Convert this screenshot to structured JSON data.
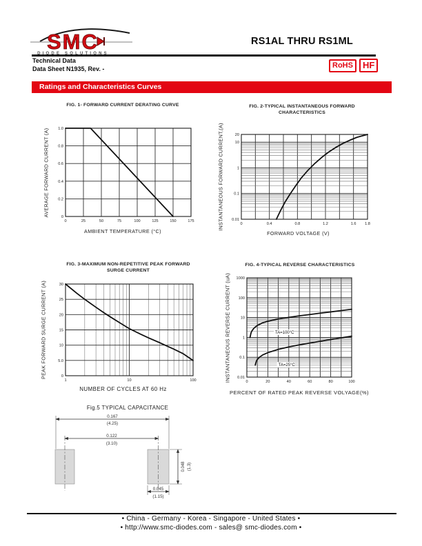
{
  "colors": {
    "accent": "#e30613",
    "pad_fill": "#d9d9d9",
    "curve": "#111111"
  },
  "header": {
    "logo_text": "SMC",
    "logo_subtext": "DIODE SOLUTIONS",
    "title": "RS1AL THRU RS1ML",
    "tech_line1": "Technical Data",
    "tech_line2": "Data Sheet N1935, Rev. -",
    "badge_rohs": "RoHS",
    "badge_hf": "HF"
  },
  "banner": {
    "title": "Ratings and Characteristics Curves"
  },
  "chart_data": [
    {
      "type": "line",
      "fig": "FIG. 1- FORWARD CURRENT DERATING CURVE",
      "xlabel": "AMBIENT TEMPERATURE (°C)",
      "ylabel": "AVERAGE FORWARD CURRENT (A)",
      "x_axis": {
        "scale": "linear",
        "min": 0,
        "max": 175,
        "step": 25
      },
      "y_axis": {
        "scale": "linear",
        "min": 0,
        "max": 1.0,
        "step": 0.2
      },
      "xticks": [
        {
          "v": 0,
          "l": "0"
        },
        {
          "v": 25,
          "l": "25"
        },
        {
          "v": 50,
          "l": "50"
        },
        {
          "v": 75,
          "l": "75"
        },
        {
          "v": 100,
          "l": "100"
        },
        {
          "v": 125,
          "l": "125"
        },
        {
          "v": 150,
          "l": "150"
        },
        {
          "v": 175,
          "l": "175"
        }
      ],
      "yticks": [
        {
          "v": 1.0,
          "l": "1.0"
        },
        {
          "v": 0.8,
          "l": "0.8"
        },
        {
          "v": 0.6,
          "l": "0.6"
        },
        {
          "v": 0.4,
          "l": "0.4"
        },
        {
          "v": 0.2,
          "l": "0.2"
        },
        {
          "v": 0,
          "l": "0"
        }
      ],
      "grid": true,
      "series": [
        {
          "name": "derating",
          "points": [
            [
              0,
              1.0
            ],
            [
              35,
              1.0
            ],
            [
              150,
              0
            ]
          ]
        }
      ]
    },
    {
      "type": "line",
      "fig": "FIG. 2-TYPICAL INSTANTANEOUS FORWARD CHARACTERISTICS",
      "xlabel": "FORWARD VOLTAGE (V)",
      "ylabel": "INSTANTANEOUS FORWARD CURRENT,(A)",
      "x_axis": {
        "scale": "linear",
        "min": 0,
        "max": 1.8,
        "step": 0.2
      },
      "y_axis": {
        "scale": "log",
        "min": 0.01,
        "max": 20
      },
      "xticks": [
        {
          "v": 0,
          "l": "0"
        },
        {
          "v": 0.4,
          "l": "0.4"
        },
        {
          "v": 0.8,
          "l": "0.8"
        },
        {
          "v": 1.2,
          "l": "1.2"
        },
        {
          "v": 1.6,
          "l": "1.6"
        },
        {
          "v": 1.8,
          "l": "1.8"
        }
      ],
      "yticks": [
        {
          "v": 20,
          "l": "20"
        },
        {
          "v": 10,
          "l": "10"
        },
        {
          "v": 1,
          "l": "1"
        },
        {
          "v": 0.1,
          "l": "0.1"
        },
        {
          "v": 0.01,
          "l": "0.01"
        }
      ],
      "grid": true,
      "series": [
        {
          "name": "forward",
          "points": [
            [
              0.5,
              0.01
            ],
            [
              0.56,
              0.022
            ],
            [
              0.63,
              0.05
            ],
            [
              0.7,
              0.1
            ],
            [
              0.78,
              0.21
            ],
            [
              0.86,
              0.42
            ],
            [
              0.95,
              0.8
            ],
            [
              1.05,
              1.5
            ],
            [
              1.15,
              2.6
            ],
            [
              1.25,
              4.2
            ],
            [
              1.35,
              6.3
            ],
            [
              1.45,
              9
            ],
            [
              1.55,
              12
            ],
            [
              1.65,
              15.5
            ],
            [
              1.8,
              20
            ]
          ]
        }
      ]
    },
    {
      "type": "line",
      "fig": "FIG. 3-MAXIMUM NON-REPETITIVE PEAK FORWARD SURGE CURRENT",
      "xlabel": "NUMBER OF CYCLES AT 60 Hz",
      "ylabel": "PEAK FORWARD SURGE CURRENT (A)",
      "x_axis": {
        "scale": "log",
        "min": 1,
        "max": 100
      },
      "y_axis": {
        "scale": "linear",
        "min": 0,
        "max": 30,
        "step": 5
      },
      "xticks": [
        {
          "v": 1,
          "l": "1"
        },
        {
          "v": 10,
          "l": "10"
        },
        {
          "v": 100,
          "l": "100"
        }
      ],
      "yticks": [
        {
          "v": 30,
          "l": "30"
        },
        {
          "v": 25,
          "l": "25"
        },
        {
          "v": 20,
          "l": "20"
        },
        {
          "v": 15,
          "l": "15"
        },
        {
          "v": 10,
          "l": "10"
        },
        {
          "v": 5,
          "l": "5.0"
        },
        {
          "v": 0,
          "l": "0"
        }
      ],
      "grid": true,
      "series": [
        {
          "name": "surge",
          "points": [
            [
              1,
              30
            ],
            [
              1.5,
              27
            ],
            [
              2,
              25
            ],
            [
              3,
              22.4
            ],
            [
              4,
              20.6
            ],
            [
              5,
              19.3
            ],
            [
              7,
              17.4
            ],
            [
              10,
              15.4
            ],
            [
              15,
              13.6
            ],
            [
              20,
              12.4
            ],
            [
              30,
              10.8
            ],
            [
              40,
              9.6
            ],
            [
              50,
              8.7
            ],
            [
              70,
              7.2
            ],
            [
              100,
              5
            ]
          ]
        }
      ]
    },
    {
      "type": "line",
      "fig": "FIG. 4-TYPICAL REVERSE CHARACTERISTICS",
      "xlabel": "PERCENT OF RATED PEAK REVERSE VOLYAGE(%)",
      "ylabel": "INSTANTANEOUS REVERSE CURRENT (uA)",
      "x_axis": {
        "scale": "linear",
        "min": 0,
        "max": 100,
        "step": 10
      },
      "y_axis": {
        "scale": "log",
        "min": 0.01,
        "max": 1000
      },
      "xticks": [
        {
          "v": 0,
          "l": "0"
        },
        {
          "v": 20,
          "l": "20"
        },
        {
          "v": 40,
          "l": "40"
        },
        {
          "v": 60,
          "l": "60"
        },
        {
          "v": 80,
          "l": "80"
        },
        {
          "v": 100,
          "l": "100"
        }
      ],
      "yticks": [
        {
          "v": 1000,
          "l": "1000"
        },
        {
          "v": 100,
          "l": "100"
        },
        {
          "v": 10,
          "l": "10"
        },
        {
          "v": 1,
          "l": "1"
        },
        {
          "v": 0.1,
          "l": "0.1"
        },
        {
          "v": 0.01,
          "l": "0.01"
        }
      ],
      "grid": true,
      "series": [
        {
          "name": "TA=100C",
          "points": [
            [
              3,
              1
            ],
            [
              4,
              1.7
            ],
            [
              5,
              2.2
            ],
            [
              7,
              3
            ],
            [
              10,
              4
            ],
            [
              15,
              5.4
            ],
            [
              20,
              6.5
            ],
            [
              30,
              8.5
            ],
            [
              40,
              10.2
            ],
            [
              50,
              12.2
            ],
            [
              60,
              14.2
            ],
            [
              70,
              16.6
            ],
            [
              80,
              19.2
            ],
            [
              90,
              22.4
            ],
            [
              100,
              26
            ]
          ]
        },
        {
          "name": "TA=25C",
          "points": [
            [
              8,
              0.04
            ],
            [
              9,
              0.062
            ],
            [
              10,
              0.078
            ],
            [
              12,
              0.1
            ],
            [
              15,
              0.13
            ],
            [
              20,
              0.17
            ],
            [
              30,
              0.25
            ],
            [
              40,
              0.33
            ],
            [
              50,
              0.42
            ],
            [
              60,
              0.52
            ],
            [
              70,
              0.64
            ],
            [
              80,
              0.78
            ],
            [
              90,
              0.95
            ],
            [
              100,
              1.15
            ]
          ]
        }
      ],
      "annotations": [
        {
          "x": 27,
          "y": 1.55,
          "text": "TA=100°C"
        },
        {
          "x": 30,
          "y": 0.036,
          "text": "TA=25°C"
        }
      ]
    }
  ],
  "fig5": {
    "title": "Fig.5 TYPICAL CAPACITANCE",
    "dims": {
      "overall_in": "0.167",
      "overall_mm": "(4.25)",
      "pitch_in": "0.122",
      "pitch_mm": "(3.10)",
      "pad_height_in": "0.048",
      "pad_height_mm": "(1.3)",
      "pad_width_in": "0.045",
      "pad_width_mm": "(1.15)"
    }
  },
  "footer": {
    "line1": "• China  -  Germany  -  Korea  -  Singapore  -  United States •",
    "line2": "• http://www.smc-diodes.com  -  sales@ smc-diodes.com •"
  }
}
